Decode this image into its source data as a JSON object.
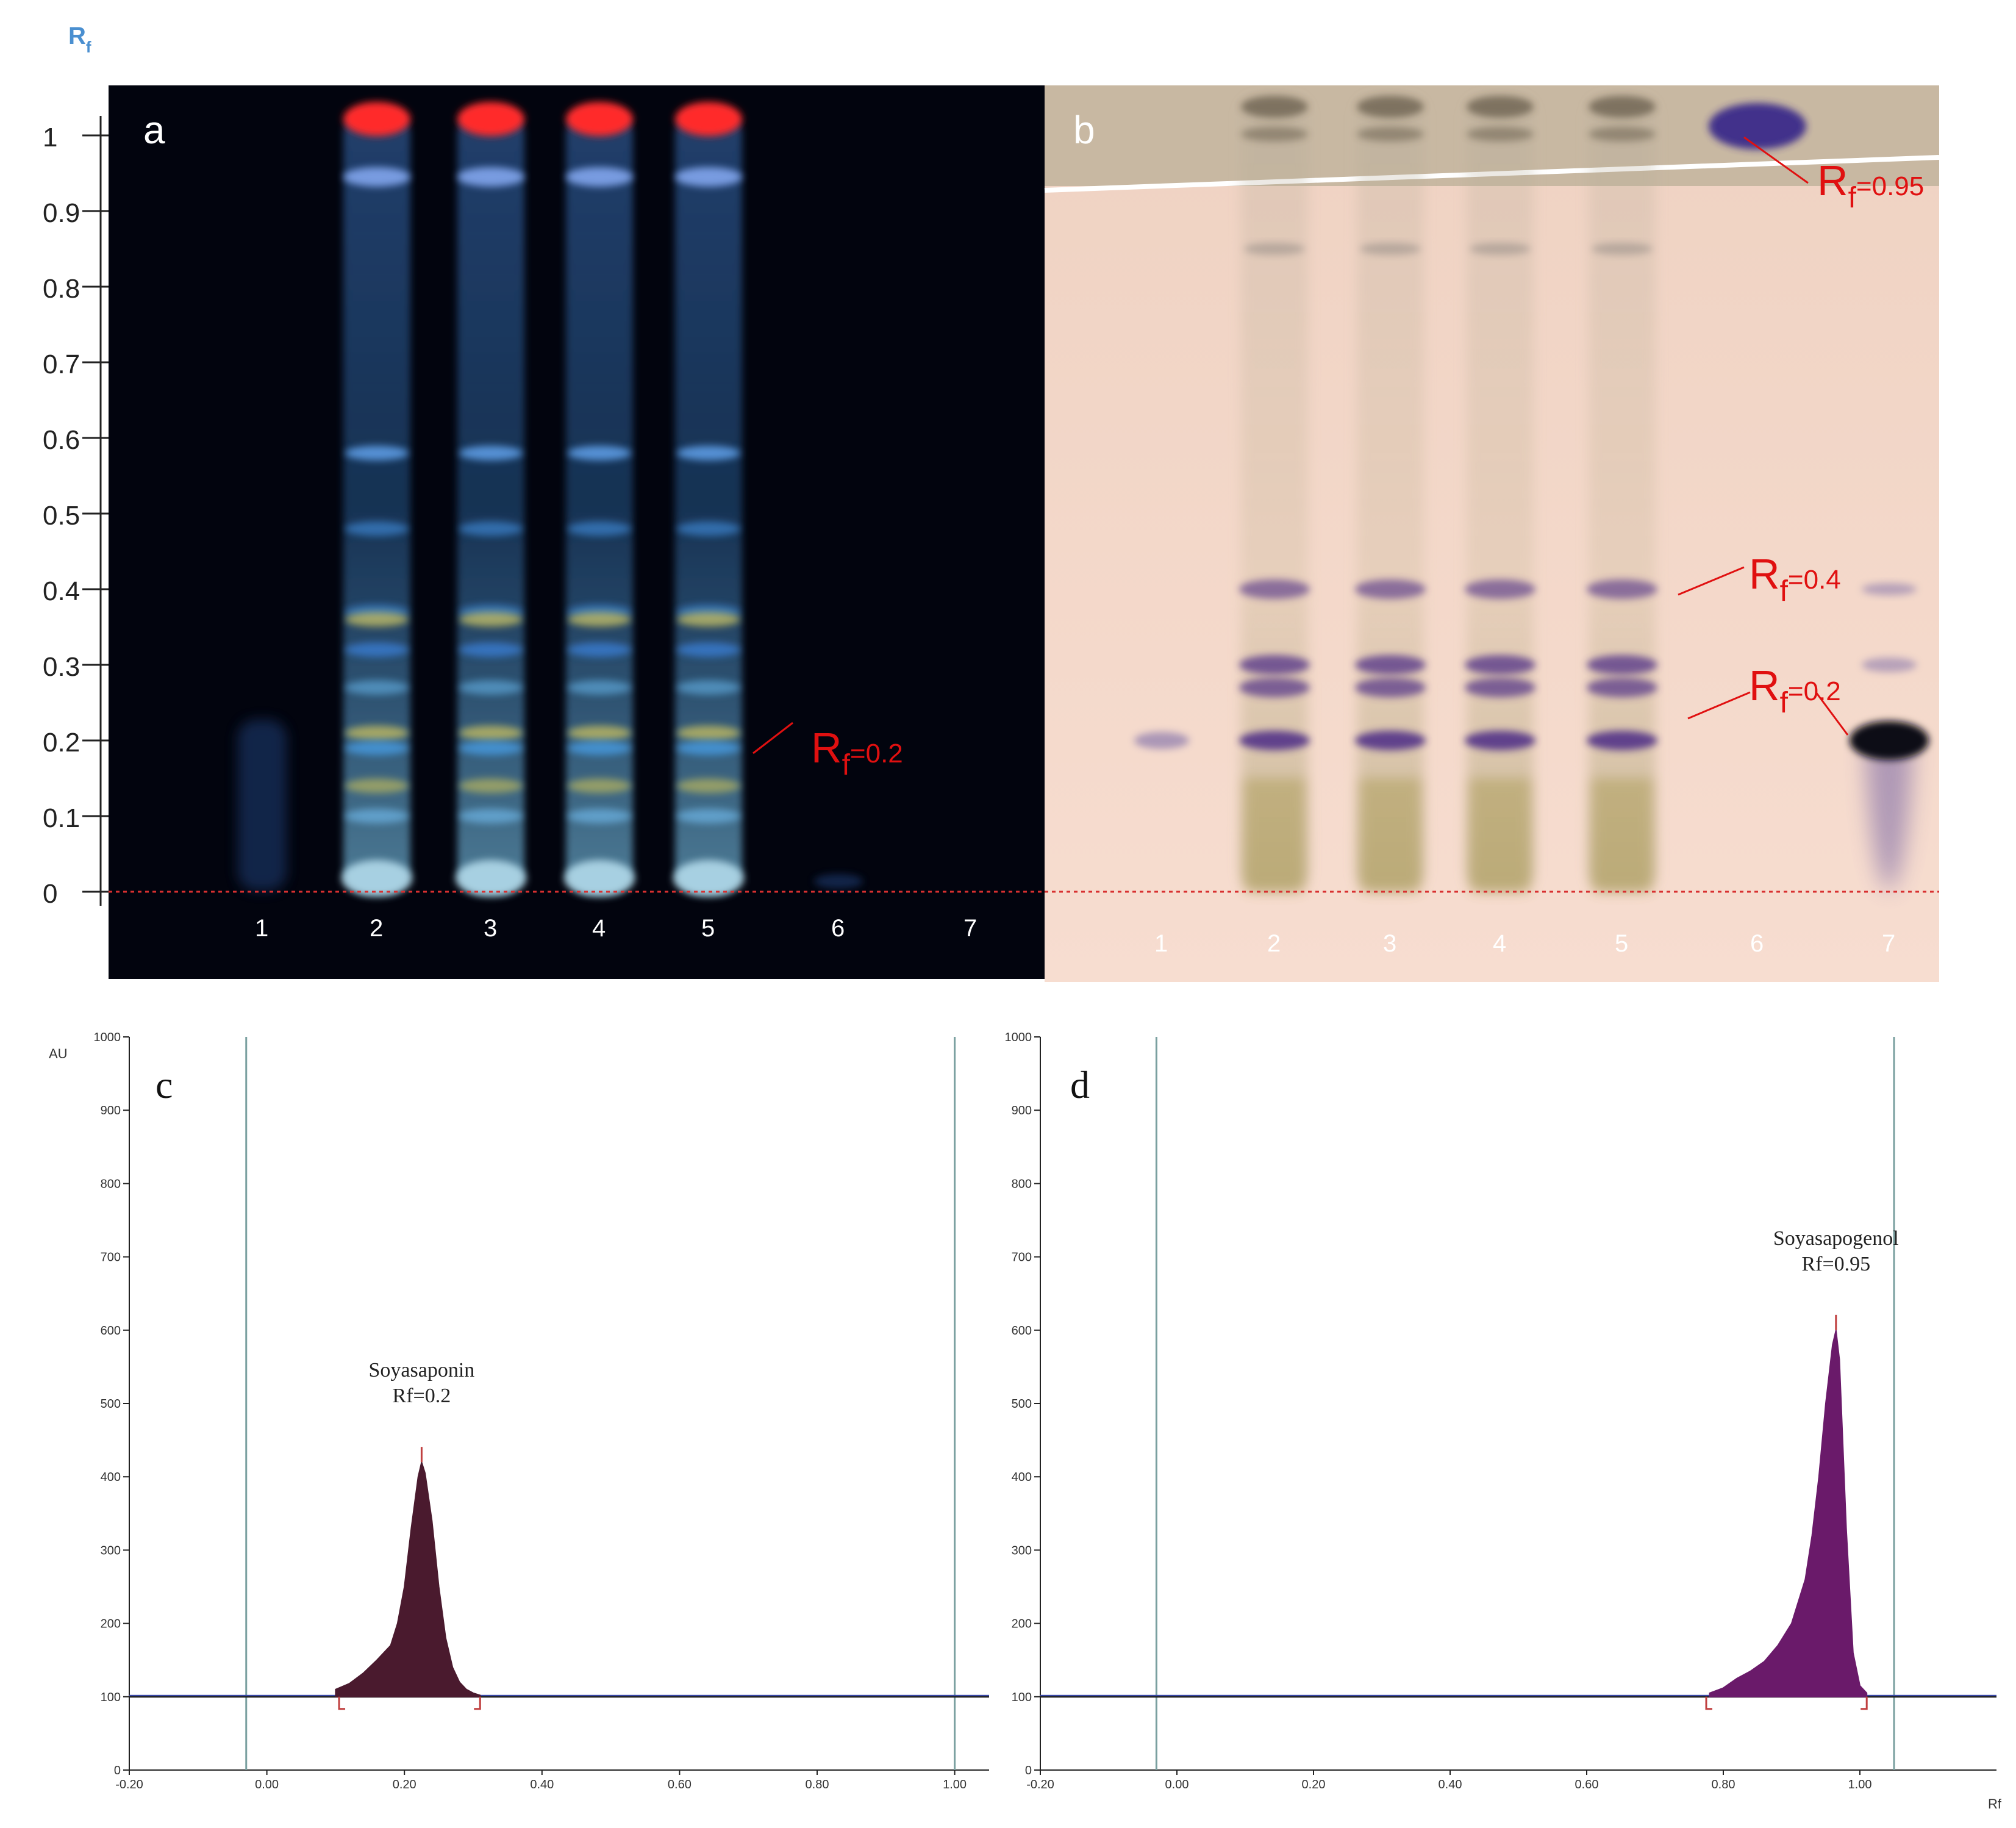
{
  "figure": {
    "rf_axis_label": "R",
    "rf_axis_label_sub": "f",
    "rf_ticks": [
      "0",
      "0.1",
      "0.2",
      "0.3",
      "0.4",
      "0.5",
      "0.6",
      "0.7",
      "0.8",
      "0.9",
      "1"
    ],
    "rf_tick_values": [
      0,
      0.1,
      0.2,
      0.3,
      0.4,
      0.5,
      0.6,
      0.7,
      0.8,
      0.9,
      1.0
    ]
  },
  "plate_a": {
    "letter": "a",
    "lanes": [
      "1",
      "2",
      "3",
      "4",
      "5",
      "6",
      "7"
    ],
    "annotation": {
      "main": "R",
      "sub": "f",
      "rest": "=0.2",
      "rf": 0.2
    },
    "band_colors": {
      "blue": "#3a8ad8",
      "red": "#ff2020",
      "yellow": "#c9c060",
      "background": "#02040e"
    }
  },
  "plate_b": {
    "letter": "b",
    "lanes": [
      "1",
      "2",
      "3",
      "4",
      "5",
      "6",
      "7"
    ],
    "annotations": [
      {
        "main": "R",
        "sub": "f",
        "rest": "=0.95",
        "rf": 0.95
      },
      {
        "main": "R",
        "sub": "f",
        "rest": "=0.4",
        "rf": 0.4
      },
      {
        "main": "R",
        "sub": "f",
        "rest": "=0.2",
        "rf": 0.2
      }
    ],
    "band_colors": {
      "purple": "#5a3a8a",
      "background": "#f2d6c6",
      "yellow": "#b8a860"
    }
  },
  "chart_data": [
    {
      "type": "area",
      "panel_letter": "c",
      "ylabel": "AU",
      "xlabel": "",
      "xlim": [
        -0.2,
        1.05
      ],
      "ylim": [
        0,
        1000
      ],
      "x_ticks": [
        "-0.20",
        "0.00",
        "0.20",
        "0.40",
        "0.60",
        "0.80",
        "1.00"
      ],
      "y_ticks": [
        "0",
        "100",
        "200",
        "300",
        "400",
        "500",
        "600",
        "700",
        "800",
        "900",
        "1000"
      ],
      "peak_label": [
        "Soyasaponin",
        "Rf=0.2"
      ],
      "peak_fill": "#4a1a2e",
      "series": [
        {
          "x": [
            0.1,
            0.12,
            0.14,
            0.16,
            0.18,
            0.19,
            0.2,
            0.21,
            0.22,
            0.225,
            0.23,
            0.24,
            0.25,
            0.26,
            0.27,
            0.28,
            0.29,
            0.3,
            0.31
          ],
          "y": [
            110,
            118,
            132,
            150,
            170,
            200,
            250,
            330,
            400,
            420,
            405,
            340,
            250,
            180,
            140,
            120,
            110,
            105,
            102
          ]
        }
      ],
      "peak_apex": {
        "x": 0.225,
        "y": 420
      },
      "integration_bounds": [
        0.105,
        0.31
      ],
      "baseline": 100,
      "vertical_lines": [
        -0.03,
        1.0
      ]
    },
    {
      "type": "area",
      "panel_letter": "d",
      "ylabel": "",
      "xlabel": "Rf",
      "xlim": [
        -0.2,
        1.2
      ],
      "ylim": [
        0,
        1000
      ],
      "x_ticks": [
        "-0.20",
        "0.00",
        "0.20",
        "0.40",
        "0.60",
        "0.80",
        "1.00"
      ],
      "y_ticks": [
        "0",
        "100",
        "200",
        "300",
        "400",
        "500",
        "600",
        "700",
        "800",
        "900",
        "1000"
      ],
      "peak_label": [
        "Soyasapogenol",
        "Rf=0.95"
      ],
      "peak_fill": "#6a1a6a",
      "series": [
        {
          "x": [
            0.78,
            0.8,
            0.82,
            0.84,
            0.86,
            0.88,
            0.9,
            0.92,
            0.93,
            0.94,
            0.95,
            0.96,
            0.965,
            0.97,
            0.98,
            0.99,
            1.0,
            1.01
          ],
          "y": [
            105,
            112,
            125,
            135,
            148,
            170,
            200,
            260,
            320,
            400,
            500,
            580,
            600,
            560,
            330,
            160,
            115,
            105
          ]
        }
      ],
      "peak_apex": {
        "x": 0.965,
        "y": 600
      },
      "integration_bounds": [
        0.775,
        1.01
      ],
      "baseline": 100,
      "vertical_lines": [
        -0.03,
        1.05
      ]
    }
  ]
}
